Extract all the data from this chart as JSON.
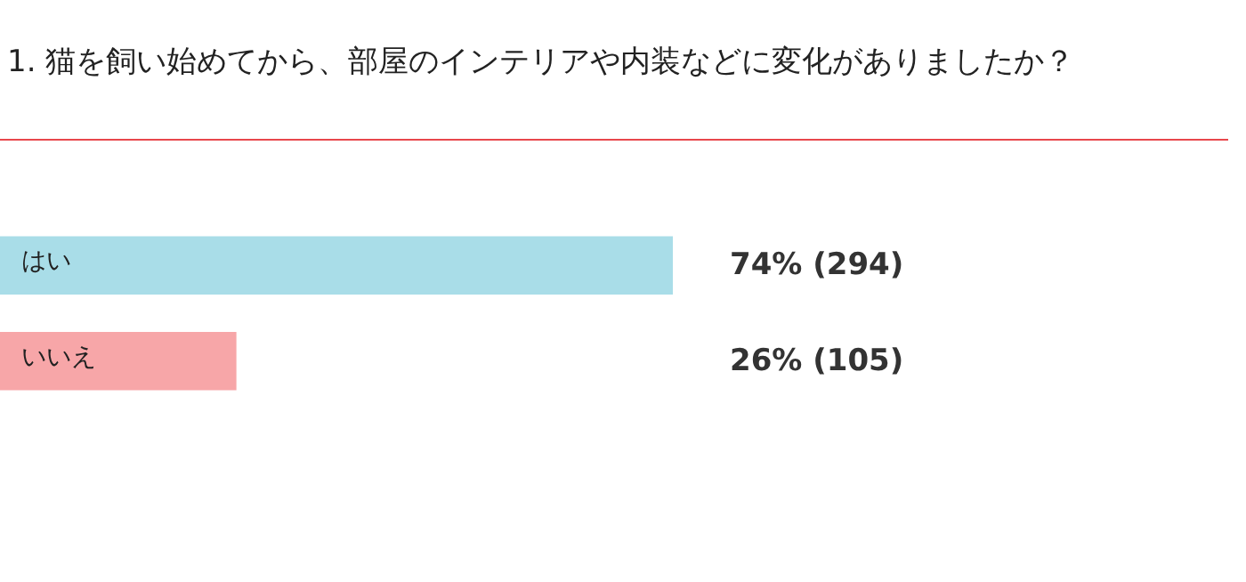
{
  "chart_data": {
    "type": "bar",
    "orientation": "horizontal",
    "title": "1. 猫を飼い始めてから、部屋のインテリアや内装などに変化がありましたか？",
    "categories": [
      "はい",
      "いいえ"
    ],
    "values": [
      74,
      26
    ],
    "colors": [
      "#a9dde8",
      "#f7a6a8"
    ],
    "value_labels": [
      "74% (294)",
      "26% (105)"
    ]
  }
}
